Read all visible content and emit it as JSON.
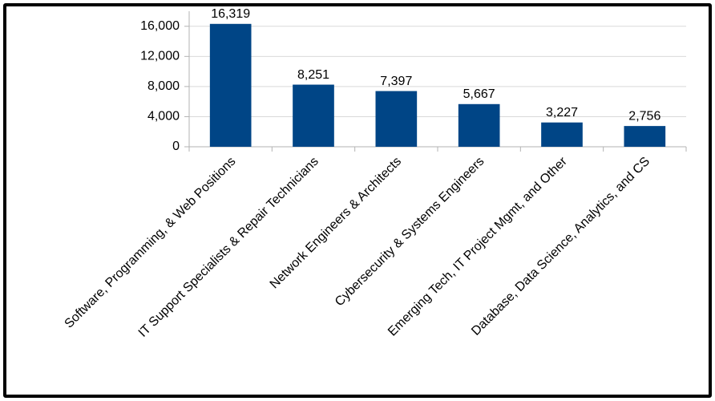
{
  "chart_data": {
    "type": "bar",
    "categories": [
      "Software, Programming, & Web Positions",
      "IT Support Specialists & Repair Technicians",
      "Network Engineers & Architects",
      "Cybersecurity & Systems Engineers",
      "Emerging Tech, IT Project Mgmt, and Other",
      "Database, Data Science, Analytics, and CS"
    ],
    "values": [
      16319,
      8251,
      7397,
      5667,
      3227,
      2756
    ],
    "value_labels": [
      "16,319",
      "8,251",
      "7,397",
      "5,667",
      "3,227",
      "2,756"
    ],
    "color": "#004586",
    "ylim": [
      0,
      18000
    ],
    "yticks": [
      0,
      {
        "value": 4000,
        "label": "4,000"
      },
      {
        "value": 8000,
        "label": "8,000"
      },
      {
        "value": 12000,
        "label": "12,000"
      },
      {
        "value": 16000,
        "label": "16,000"
      }
    ],
    "grid": true
  }
}
